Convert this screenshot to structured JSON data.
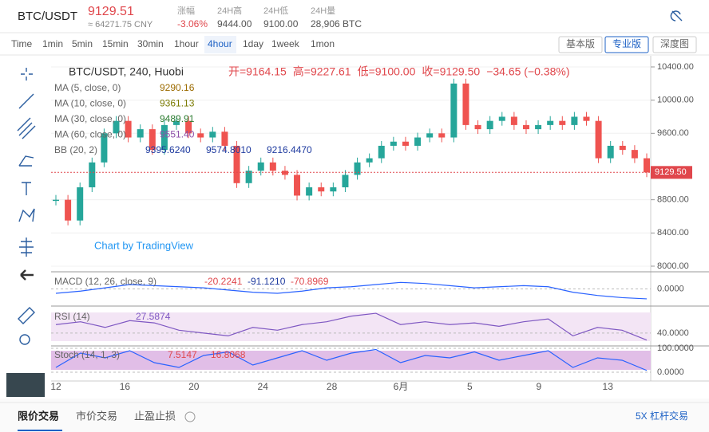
{
  "header": {
    "symbol": "BTC/USDT",
    "price": "9129.51",
    "cny": "≈ 64271.75 CNY",
    "stats": [
      {
        "label": "涨幅",
        "value": "-3.06%"
      },
      {
        "label": "24H高",
        "value": "9444.00"
      },
      {
        "label": "24H低",
        "value": "9100.00"
      },
      {
        "label": "24H量",
        "value": "28,906 BTC"
      }
    ]
  },
  "toolbar": {
    "intervals": [
      "Time",
      "1min",
      "5min",
      "15min",
      "30min",
      "1hour",
      "4hour",
      "1day",
      "1week",
      "1mon"
    ],
    "active": "4hour",
    "versions": [
      "基本版",
      "专业版",
      "深度图"
    ],
    "active_version": "专业版"
  },
  "chart": {
    "legend": {
      "title": "BTC/USDT, 240, Huobi",
      "ohlc": [
        "开=9164.15",
        "高=9227.61",
        "低=9100.00",
        "收=9129.50",
        "−34.65 (−0.38%)"
      ]
    },
    "indicators": [
      {
        "name": "MA (5, close, 0)",
        "values": [
          "9290.16"
        ]
      },
      {
        "name": "MA (10, close, 0)",
        "values": [
          "9361.13"
        ]
      },
      {
        "name": "MA (30, close, 0)",
        "values": [
          "9489.91"
        ]
      },
      {
        "name": "MA (60, close, 0)",
        "values": [
          "9551.40"
        ]
      },
      {
        "name": "BB (20, 2)",
        "values": [
          "9395.6240",
          "9574.8010",
          "9216.4470"
        ]
      }
    ],
    "watermark": "Chart by TradingView",
    "price": {
      "ylim": [
        7942,
        10515
      ],
      "yticks": [
        {
          "value": 10400,
          "label": "10400.00"
        },
        {
          "value": 10000,
          "label": "10000.00"
        },
        {
          "value": 9600,
          "label": "9600.00"
        },
        {
          "value": 8800,
          "label": "8800.00"
        },
        {
          "value": 8400,
          "label": "8400.00"
        },
        {
          "value": 8000,
          "label": "8000.00"
        }
      ],
      "last": {
        "value": 9129.5,
        "label": "9129.50"
      },
      "closes": [
        8800,
        8550,
        8950,
        9250,
        9600,
        9750,
        9550,
        9650,
        9400,
        9700,
        9750,
        9600,
        9550,
        9620,
        9450,
        9000,
        9150,
        9250,
        9150,
        9100,
        8850,
        8950,
        8900,
        8950,
        9100,
        9250,
        9300,
        9450,
        9500,
        9450,
        9550,
        9600,
        9550,
        10200,
        9700,
        9650,
        9750,
        9800,
        9700,
        9650,
        9700,
        9750,
        9700,
        9800,
        9750,
        9300,
        9450,
        9400,
        9300,
        9129.5
      ],
      "up_color": "#26a69a",
      "down_color": "#ef5350"
    },
    "macd": {
      "name": "MACD (12, 26, close, 9)",
      "values": [
        "-20.2241",
        "-91.1210",
        "-70.8969"
      ],
      "ylim": [
        -150,
        150
      ],
      "yticks": [
        {
          "value": 0,
          "label": "0.0000"
        }
      ],
      "color": "#2962ff",
      "line": [
        -40,
        -20,
        10,
        40,
        30,
        20,
        10,
        -10,
        -30,
        -40,
        -20,
        10,
        20,
        40,
        60,
        50,
        30,
        10,
        20,
        30,
        20,
        -30,
        -60,
        -80,
        -91.121
      ]
    },
    "rsi": {
      "name": "RSI (14)",
      "values": [
        "27.5874"
      ],
      "ylim": [
        20,
        85
      ],
      "yticks": [
        {
          "value": 40,
          "label": "40.0000"
        }
      ],
      "color": "#7e57c2",
      "line": [
        55,
        60,
        50,
        62,
        58,
        45,
        40,
        35,
        50,
        45,
        55,
        60,
        70,
        75,
        55,
        60,
        55,
        58,
        52,
        60,
        65,
        35,
        50,
        45,
        27.5874
      ]
    },
    "stoch": {
      "name": "Stoch (14, 1, 3)",
      "values": [
        "7.5147",
        "16.8068"
      ],
      "ylim": [
        -10,
        110
      ],
      "yticks": [
        {
          "value": 100,
          "label": "100.0000"
        },
        {
          "value": 0,
          "label": "0.0000"
        }
      ],
      "color": "#2962ff",
      "line": [
        20,
        80,
        60,
        90,
        40,
        20,
        70,
        85,
        30,
        60,
        90,
        50,
        80,
        95,
        40,
        70,
        60,
        85,
        50,
        70,
        90,
        20,
        60,
        50,
        7.5147
      ]
    },
    "xlabels": [
      "12",
      "16",
      "20",
      "24",
      "28",
      "6月",
      "5",
      "9",
      "13"
    ]
  },
  "footer": {
    "tabs": [
      "限价交易",
      "市价交易",
      "止盈止损"
    ],
    "right": "5X 杠杆交易"
  }
}
